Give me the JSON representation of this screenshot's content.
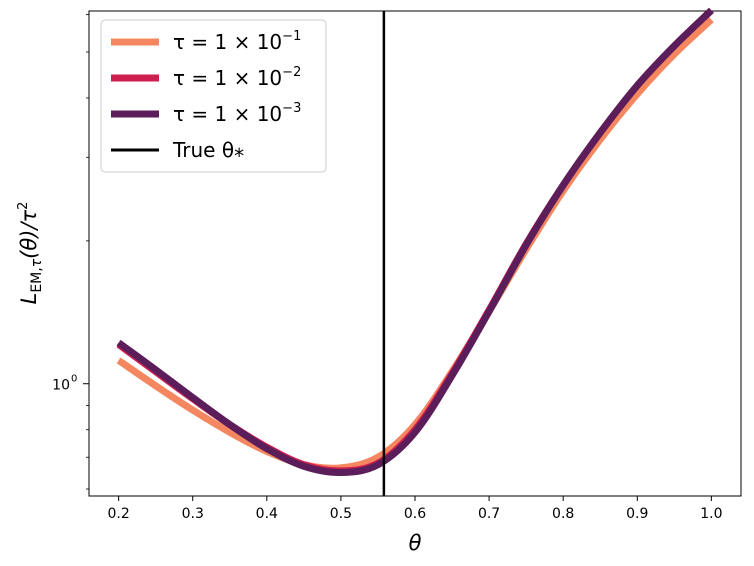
{
  "chart_data": {
    "type": "line",
    "title": "",
    "xlabel": "θ",
    "ylabel": "L_EM,τ(θ)/τ²",
    "xlim": [
      0.16,
      1.04
    ],
    "ylim": [
      0.58,
      6.1
    ],
    "y_scale": "log",
    "x_ticks": [
      0.2,
      0.3,
      0.4,
      0.5,
      0.6,
      0.7,
      0.8,
      0.9,
      1.0
    ],
    "x_tick_labels": [
      "0.2",
      "0.3",
      "0.4",
      "0.5",
      "0.6",
      "0.7",
      "0.8",
      "0.9",
      "1.0"
    ],
    "y_major_ticks": [
      1.0
    ],
    "y_major_tick_labels": [
      "10^0"
    ],
    "y_minor_ticks": [
      0.6,
      0.7,
      0.8,
      0.9,
      2,
      3,
      4,
      5,
      6
    ],
    "grid": false,
    "legend_position": "top-left",
    "vline": {
      "x": 0.558,
      "color": "#000000",
      "label": "True θ*"
    },
    "series": [
      {
        "name": "τ = 1 × 10^−1",
        "color": "#f4875f",
        "x": [
          0.2,
          0.25,
          0.3,
          0.35,
          0.4,
          0.45,
          0.5,
          0.55,
          0.6,
          0.65,
          0.7,
          0.75,
          0.8,
          0.85,
          0.9,
          0.95,
          1.0
        ],
        "y": [
          1.12,
          0.99,
          0.88,
          0.79,
          0.72,
          0.675,
          0.665,
          0.7,
          0.82,
          1.06,
          1.42,
          1.92,
          2.55,
          3.27,
          4.08,
          4.95,
          5.85
        ]
      },
      {
        "name": "τ = 1 × 10^−2",
        "color": "#cf1f50",
        "x": [
          0.2,
          0.25,
          0.3,
          0.35,
          0.4,
          0.45,
          0.5,
          0.55,
          0.6,
          0.65,
          0.7,
          0.75,
          0.8,
          0.85,
          0.9,
          0.95,
          1.0
        ],
        "y": [
          1.21,
          1.06,
          0.93,
          0.82,
          0.735,
          0.675,
          0.655,
          0.68,
          0.8,
          1.05,
          1.43,
          1.97,
          2.62,
          3.38,
          4.25,
          5.15,
          6.12
        ]
      },
      {
        "name": "τ = 1 × 10^−3",
        "color": "#5c1e5b",
        "x": [
          0.2,
          0.25,
          0.3,
          0.35,
          0.4,
          0.45,
          0.5,
          0.55,
          0.6,
          0.65,
          0.7,
          0.75,
          0.8,
          0.85,
          0.9,
          0.95,
          1.0
        ],
        "y": [
          1.22,
          1.07,
          0.935,
          0.82,
          0.73,
          0.67,
          0.65,
          0.675,
          0.79,
          1.04,
          1.42,
          1.96,
          2.62,
          3.38,
          4.25,
          5.15,
          6.12
        ]
      }
    ],
    "legend": [
      {
        "text": "τ = 1 × 10",
        "sup": "−1",
        "color": "#f4875f"
      },
      {
        "text": "τ = 1 × 10",
        "sup": "−2",
        "color": "#cf1f50"
      },
      {
        "text": "τ = 1 × 10",
        "sup": "−3",
        "color": "#5c1e5b"
      },
      {
        "text": "True θ",
        "sub": "*",
        "color": "#000000"
      }
    ]
  }
}
